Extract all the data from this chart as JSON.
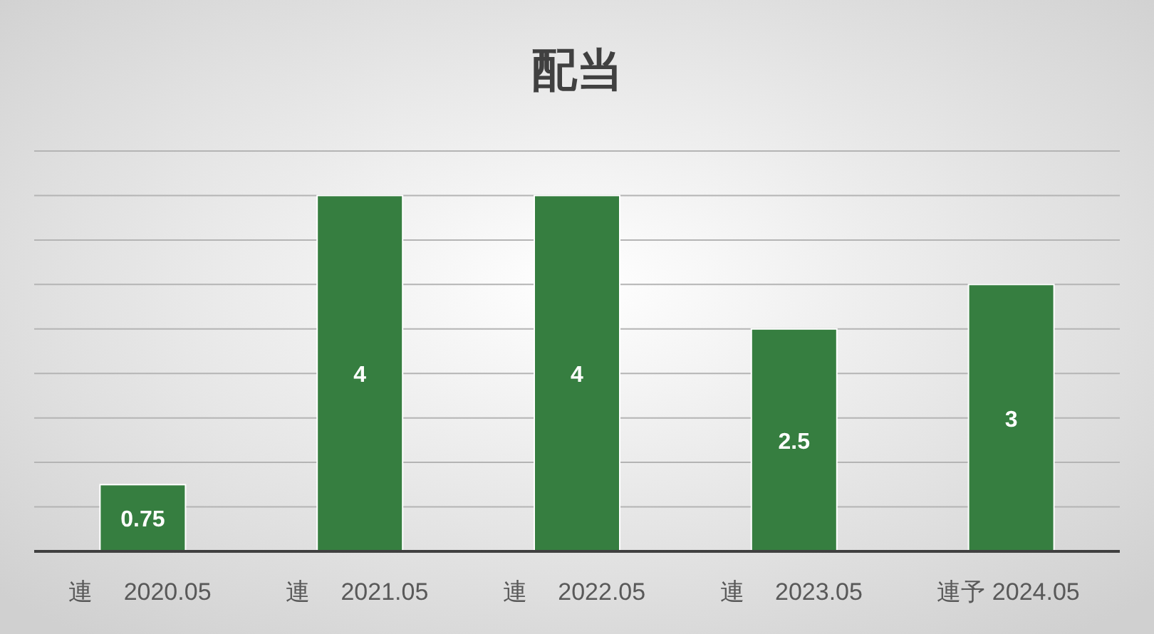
{
  "chart_data": {
    "type": "bar",
    "title": "配当",
    "categories": [
      "連　 2020.05",
      "連　 2021.05",
      "連　 2022.05",
      "連　 2023.05",
      "連予 2024.05"
    ],
    "values": [
      0.75,
      4,
      4,
      2.5,
      3
    ],
    "color": "#367e40",
    "ylim": [
      0,
      4.5
    ],
    "yticks": [
      {
        "value": 0,
        "label": null
      },
      {
        "value": 0.5,
        "label": null
      },
      {
        "value": 1,
        "label": null
      },
      {
        "value": 1.5,
        "label": null
      },
      {
        "value": 2,
        "label": null
      },
      {
        "value": 2.5,
        "label": null
      },
      {
        "value": 3,
        "label": null
      },
      {
        "value": 3.5,
        "label": null
      },
      {
        "value": 4,
        "label": null
      },
      {
        "value": 4.5,
        "label": null
      }
    ],
    "grid": "y",
    "data_labels": true,
    "tick_labels": "x"
  }
}
